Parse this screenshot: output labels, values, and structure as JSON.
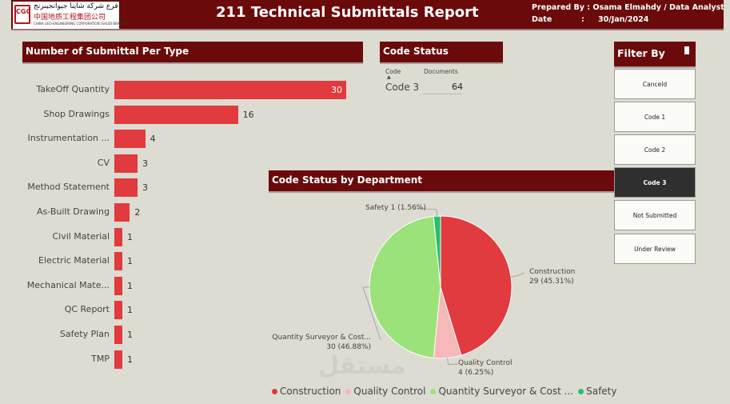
{
  "header": {
    "logo_line1": "فرع شركة شاينا جيوانجينرنج",
    "logo_line2": "中国地质工程集团公司",
    "logo_line3": "CHINA GEO-ENGINEERING CORPORATION (SAUDI BRANCH)",
    "logo_mark": "CGC",
    "title": "211 Technical Submittals Report",
    "prepared_by_label": "Prepared By : Osama Elmahdy /  Data Analyst",
    "date_label": "Date",
    "date_value": "30/Jan/2024"
  },
  "submittal_panel": {
    "title": "Number of Submittal Per Type"
  },
  "chart_data": [
    {
      "type": "bar",
      "orientation": "horizontal",
      "title": "Number of Submittal Per Type",
      "categories": [
        "TakeOff Quantity",
        "Shop Drawings",
        "Instrumentation ...",
        "CV",
        "Method Statement",
        "As-Built Drawing",
        "Civil Material",
        "Electric Material",
        "Mechanical Mate...",
        "QC Report",
        "Safety Plan",
        "TMP"
      ],
      "values": [
        30,
        16,
        4,
        3,
        3,
        2,
        1,
        1,
        1,
        1,
        1,
        1
      ],
      "color": "#e13a3f",
      "xlim": [
        0,
        30
      ]
    },
    {
      "type": "pie",
      "title": "Code Status by Department",
      "categories": [
        "Construction",
        "Quality Control",
        "Quantity Surveyor & Cost ...",
        "Safety"
      ],
      "values": [
        29,
        4,
        30,
        1
      ],
      "percent_labels": [
        "29 (45.31%)",
        "4 (6.25%)",
        "30 (46.88%)",
        "1 (1.56%)"
      ],
      "slice_labels": [
        "Construction",
        "Quality Control",
        "Quantity Surveyor & Cost...",
        "Safety"
      ],
      "colors": [
        "#e13a3f",
        "#f6b8b8",
        "#9be27a",
        "#22c070"
      ]
    }
  ],
  "code_status": {
    "title": "Code Status",
    "col_code": "Code",
    "col_documents": "Documents",
    "code": "Code 3",
    "documents": "64"
  },
  "department_panel": {
    "title": "Code Status by Department"
  },
  "filter": {
    "title": "Filter By",
    "options": [
      "Canceld",
      "Code 1",
      "Code 2",
      "Code 3",
      "Not Submitted",
      "Under Review"
    ],
    "active": "Code 3"
  },
  "watermark": "مستقل"
}
